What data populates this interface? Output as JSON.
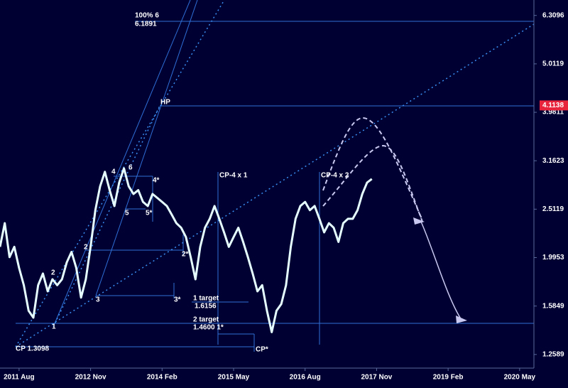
{
  "chart_data": {
    "type": "line",
    "log_scale": true,
    "background": "#000033",
    "series": [
      {
        "color": "#e6ffff",
        "x": [
          "2011-04",
          "2011-05",
          "2011-06",
          "2011-07",
          "2011-08",
          "2011-09",
          "2011-10",
          "2011-11",
          "2011-12",
          "2012-01",
          "2012-02",
          "2012-03",
          "2012-04",
          "2012-05",
          "2012-06",
          "2012-07",
          "2012-08",
          "2012-09",
          "2012-10",
          "2012-11",
          "2012-12",
          "2013-01",
          "2013-02",
          "2013-03",
          "2013-04",
          "2013-05",
          "2013-06",
          "2013-07",
          "2013-08",
          "2013-09",
          "2013-10",
          "2013-11",
          "2013-12",
          "2014-01",
          "2014-02",
          "2014-03",
          "2014-04",
          "2014-05",
          "2014-06",
          "2014-07",
          "2014-08",
          "2014-09",
          "2014-10",
          "2014-11",
          "2014-12",
          "2015-01",
          "2015-02",
          "2015-03",
          "2015-04",
          "2015-05",
          "2015-06",
          "2015-07",
          "2015-08",
          "2015-09",
          "2015-10",
          "2015-11",
          "2015-12",
          "2016-01",
          "2016-02",
          "2016-03",
          "2016-04",
          "2016-05",
          "2016-06",
          "2016-07",
          "2016-08",
          "2016-09",
          "2016-10",
          "2016-11",
          "2016-12",
          "2017-01",
          "2017-02",
          "2017-03",
          "2017-04",
          "2017-05",
          "2017-06",
          "2017-07",
          "2017-08",
          "2017-09",
          "2017-10"
        ],
        "values": [
          2.1,
          2.35,
          2.0,
          2.1,
          1.9,
          1.75,
          1.55,
          1.5,
          1.75,
          1.85,
          1.7,
          1.8,
          1.75,
          1.8,
          1.95,
          2.05,
          1.9,
          1.65,
          1.8,
          2.1,
          2.5,
          2.8,
          3.0,
          2.75,
          2.55,
          2.85,
          3.05,
          2.8,
          2.7,
          2.75,
          2.6,
          2.55,
          2.7,
          2.65,
          2.6,
          2.55,
          2.45,
          2.35,
          2.3,
          2.2,
          2.0,
          1.8,
          2.1,
          2.3,
          2.4,
          2.55,
          2.4,
          2.25,
          2.1,
          2.2,
          2.3,
          2.15,
          2.0,
          1.85,
          1.7,
          1.75,
          1.55,
          1.4,
          1.55,
          1.6,
          1.75,
          2.1,
          2.4,
          2.55,
          2.6,
          2.5,
          2.55,
          2.4,
          2.25,
          2.35,
          2.3,
          2.15,
          2.35,
          2.4,
          2.4,
          2.5,
          2.7,
          2.85,
          2.9
        ]
      }
    ],
    "xlim": [
      "2011-04",
      "2020-08"
    ],
    "xticks": [
      {
        "value": "2011-08",
        "label": "2011 Aug"
      },
      {
        "value": "2012-11",
        "label": "2012 Nov"
      },
      {
        "value": "2014-02",
        "label": "2014 Feb"
      },
      {
        "value": "2015-05",
        "label": "2015 May"
      },
      {
        "value": "2016-08",
        "label": "2016 Aug"
      },
      {
        "value": "2017-11",
        "label": "2017 Nov"
      },
      {
        "value": "2019-02",
        "label": "2019 Feb"
      },
      {
        "value": "2020-05",
        "label": "2020 May"
      }
    ],
    "ylim": [
      1.18,
      6.79
    ],
    "yticks": [
      1.2589,
      1.5849,
      1.9953,
      2.5119,
      3.1623,
      3.9811,
      5.0119,
      6.3096
    ],
    "marker": {
      "value": 4.1138,
      "color": "#e8243c"
    },
    "annotations": [
      "100% 6",
      "6.1891",
      "HP",
      "CP-4 x 1",
      "CP-4 x 2",
      "1 target",
      "1.6156",
      "2 target",
      "1.4600 1*",
      "CP 1.3098",
      "CP*",
      "4",
      "6",
      "4*",
      "5",
      "5*",
      "2",
      "2*",
      "2",
      "3",
      "3*",
      "1"
    ]
  }
}
